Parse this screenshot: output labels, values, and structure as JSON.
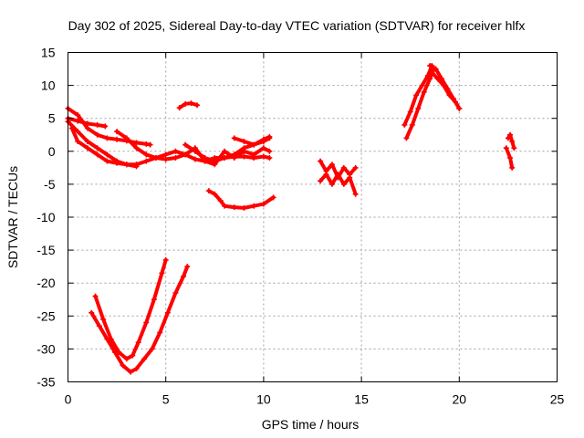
{
  "chart_data": {
    "type": "scatter",
    "title": "Day 302 of 2025, Sidereal Day-to-day VTEC variation (SDTVAR) for receiver hlfx",
    "xlabel": "GPS time / hours",
    "ylabel": "SDTVAR / TECUs",
    "xlim": [
      0,
      25
    ],
    "ylim": [
      -35,
      15
    ],
    "xticks": [
      0,
      5,
      10,
      15,
      20,
      25
    ],
    "yticks": [
      -35,
      -30,
      -25,
      -20,
      -15,
      -10,
      -5,
      0,
      5,
      10,
      15
    ],
    "grid": true,
    "legend": "none",
    "color": "#ff0000",
    "series": [
      {
        "x": [
          0.0,
          0.5,
          1.0,
          1.5,
          1.9
        ],
        "y": [
          5.0,
          4.6,
          4.2,
          4.0,
          3.8
        ]
      },
      {
        "x": [
          0.0,
          0.5,
          1.0,
          1.5,
          2.0,
          2.5,
          3.0,
          3.5,
          4.0,
          4.2
        ],
        "y": [
          6.5,
          5.5,
          3.5,
          2.5,
          2.0,
          1.8,
          1.6,
          1.3,
          1.1,
          1.0
        ]
      },
      {
        "x": [
          0.0,
          0.5,
          1.0,
          1.5,
          2.0,
          2.5,
          3.0,
          3.5
        ],
        "y": [
          4.5,
          3.0,
          1.5,
          0.5,
          -0.5,
          -1.5,
          -2.0,
          -2.3
        ]
      },
      {
        "x": [
          0.2,
          0.5,
          1.0,
          1.5,
          2.0,
          2.5,
          3.0,
          3.5
        ],
        "y": [
          3.5,
          1.5,
          0.5,
          -0.5,
          -1.5,
          -1.8,
          -2.0,
          -2.0
        ]
      },
      {
        "x": [
          2.5,
          3.0,
          3.5,
          4.0,
          4.5,
          5.0,
          5.5,
          6.0,
          6.5,
          7.0,
          7.5,
          8.0,
          8.5,
          9.0,
          9.5,
          10.0,
          10.3
        ],
        "y": [
          3.0,
          2.0,
          0.5,
          -0.5,
          -1.0,
          -1.2,
          -1.0,
          -0.5,
          -1.2,
          -1.5,
          -1.0,
          -1.0,
          -0.8,
          -0.8,
          -1.0,
          -0.8,
          -1.0
        ]
      },
      {
        "x": [
          3.5,
          4.0,
          4.5,
          5.0,
          5.5,
          6.0,
          6.5,
          7.0,
          7.5,
          8.0,
          8.5,
          9.0,
          9.5,
          10.0,
          10.3
        ],
        "y": [
          -2.0,
          -1.5,
          -1.0,
          -0.5,
          0.0,
          -0.5,
          0.5,
          -1.5,
          -2.0,
          0.0,
          -1.0,
          0.0,
          -0.5,
          0.5,
          0.0
        ]
      },
      {
        "x": [
          6.0,
          6.5,
          7.0,
          7.5,
          8.0,
          8.5,
          9.0,
          9.5,
          10.0,
          10.3
        ],
        "y": [
          1.0,
          0.0,
          -1.0,
          -1.5,
          -1.0,
          -0.5,
          0.5,
          1.0,
          1.5,
          2.0
        ]
      },
      {
        "x": [
          8.5,
          9.0,
          9.5,
          10.0,
          10.3
        ],
        "y": [
          2.0,
          1.5,
          1.0,
          1.8,
          2.2
        ]
      },
      {
        "x": [
          5.7,
          6.0,
          6.3,
          6.6
        ],
        "y": [
          6.6,
          7.2,
          7.3,
          7.0
        ]
      },
      {
        "x": [
          7.2,
          7.5,
          7.8,
          8.0,
          8.5,
          9.0,
          9.5,
          10.0,
          10.5
        ],
        "y": [
          -6.0,
          -6.5,
          -7.5,
          -8.3,
          -8.5,
          -8.6,
          -8.3,
          -8.0,
          -7.0
        ]
      },
      {
        "x": [
          1.4,
          1.8,
          2.2,
          2.6,
          3.0,
          3.3,
          3.6,
          4.0,
          4.4,
          4.8,
          5.0
        ],
        "y": [
          -22.0,
          -25.5,
          -28.5,
          -30.5,
          -31.5,
          -31.0,
          -29.0,
          -26.0,
          -22.5,
          -18.5,
          -16.5
        ]
      },
      {
        "x": [
          1.2,
          1.6,
          2.0,
          2.4,
          2.8,
          3.2,
          3.5,
          3.9,
          4.3,
          4.7,
          5.1,
          5.5,
          5.9,
          6.1
        ],
        "y": [
          -24.5,
          -26.5,
          -28.5,
          -30.5,
          -32.5,
          -33.5,
          -33.0,
          -31.5,
          -30.0,
          -27.5,
          -24.5,
          -21.5,
          -19.0,
          -17.5
        ]
      },
      {
        "x": [
          12.9,
          13.2,
          13.5,
          13.8,
          14.1,
          14.4,
          14.7
        ],
        "y": [
          -1.5,
          -3.0,
          -2.0,
          -4.0,
          -2.5,
          -3.5,
          -2.5
        ]
      },
      {
        "x": [
          12.9,
          13.2,
          13.5,
          13.8,
          14.1,
          14.4,
          14.7
        ],
        "y": [
          -4.5,
          -3.5,
          -5.0,
          -3.5,
          -5.0,
          -4.0,
          -6.5
        ]
      },
      {
        "x": [
          17.2,
          17.5,
          17.8,
          18.1,
          18.4,
          18.6
        ],
        "y": [
          4.0,
          6.0,
          8.5,
          10.0,
          11.5,
          13.0
        ]
      },
      {
        "x": [
          17.3,
          17.6,
          17.9,
          18.2,
          18.5,
          18.7
        ],
        "y": [
          2.0,
          4.0,
          6.5,
          9.0,
          11.0,
          12.5
        ]
      },
      {
        "x": [
          18.5,
          18.8,
          19.1,
          19.4,
          19.7,
          20.0
        ],
        "y": [
          13.0,
          12.5,
          11.0,
          9.5,
          8.0,
          6.5
        ]
      },
      {
        "x": [
          18.6,
          18.9,
          19.2,
          19.5,
          19.8,
          20.0
        ],
        "y": [
          12.0,
          11.0,
          10.0,
          8.5,
          7.5,
          6.5
        ]
      },
      {
        "x": [
          22.5,
          22.6,
          22.7,
          22.8
        ],
        "y": [
          2.0,
          2.5,
          1.5,
          0.5
        ]
      },
      {
        "x": [
          22.4,
          22.6,
          22.7
        ],
        "y": [
          0.5,
          -1.0,
          -2.5
        ]
      }
    ]
  }
}
